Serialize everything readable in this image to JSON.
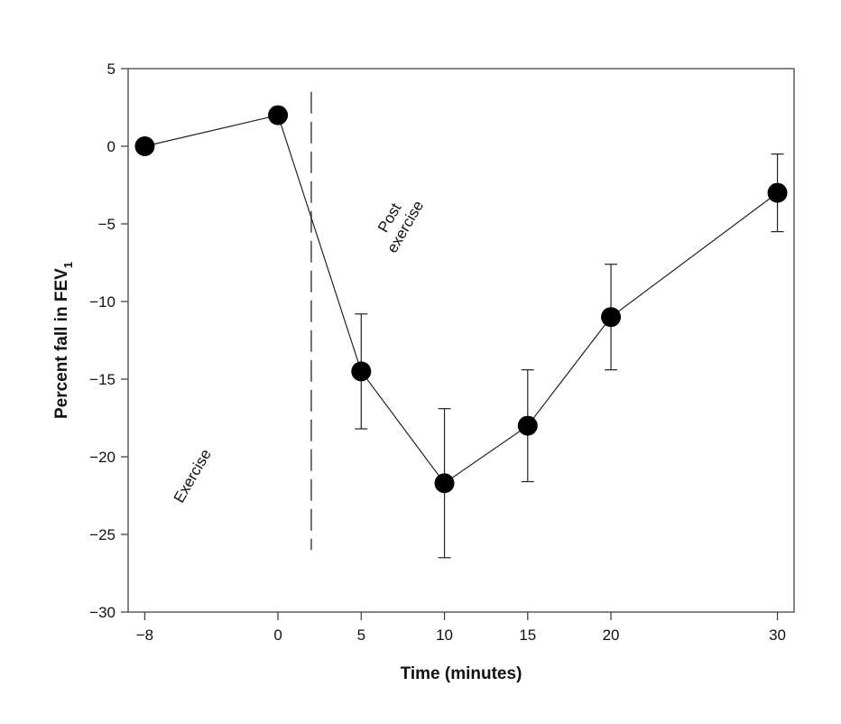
{
  "chart_data": {
    "type": "line",
    "title": "",
    "xlabel": "Time (minutes)",
    "ylabel": "Percent fall in FEV",
    "ylabel_subscript": "1",
    "xlim": [
      -9,
      31
    ],
    "ylim": [
      -30,
      5
    ],
    "x_ticks": [
      -8,
      0,
      5,
      10,
      15,
      20,
      30
    ],
    "y_ticks": [
      5,
      0,
      -5,
      -10,
      -15,
      -20,
      -25,
      -30
    ],
    "grid": false,
    "x": [
      -8,
      0,
      5,
      10,
      15,
      20,
      30
    ],
    "y": [
      0,
      2,
      -14.5,
      -21.7,
      -18,
      -11,
      -3
    ],
    "error": [
      null,
      null,
      3.7,
      4.8,
      3.6,
      3.4,
      2.5
    ],
    "divider_x": 2,
    "annotations": {
      "exercise": "Exercise",
      "post_line1": "Post",
      "post_line2": "exercise"
    }
  }
}
